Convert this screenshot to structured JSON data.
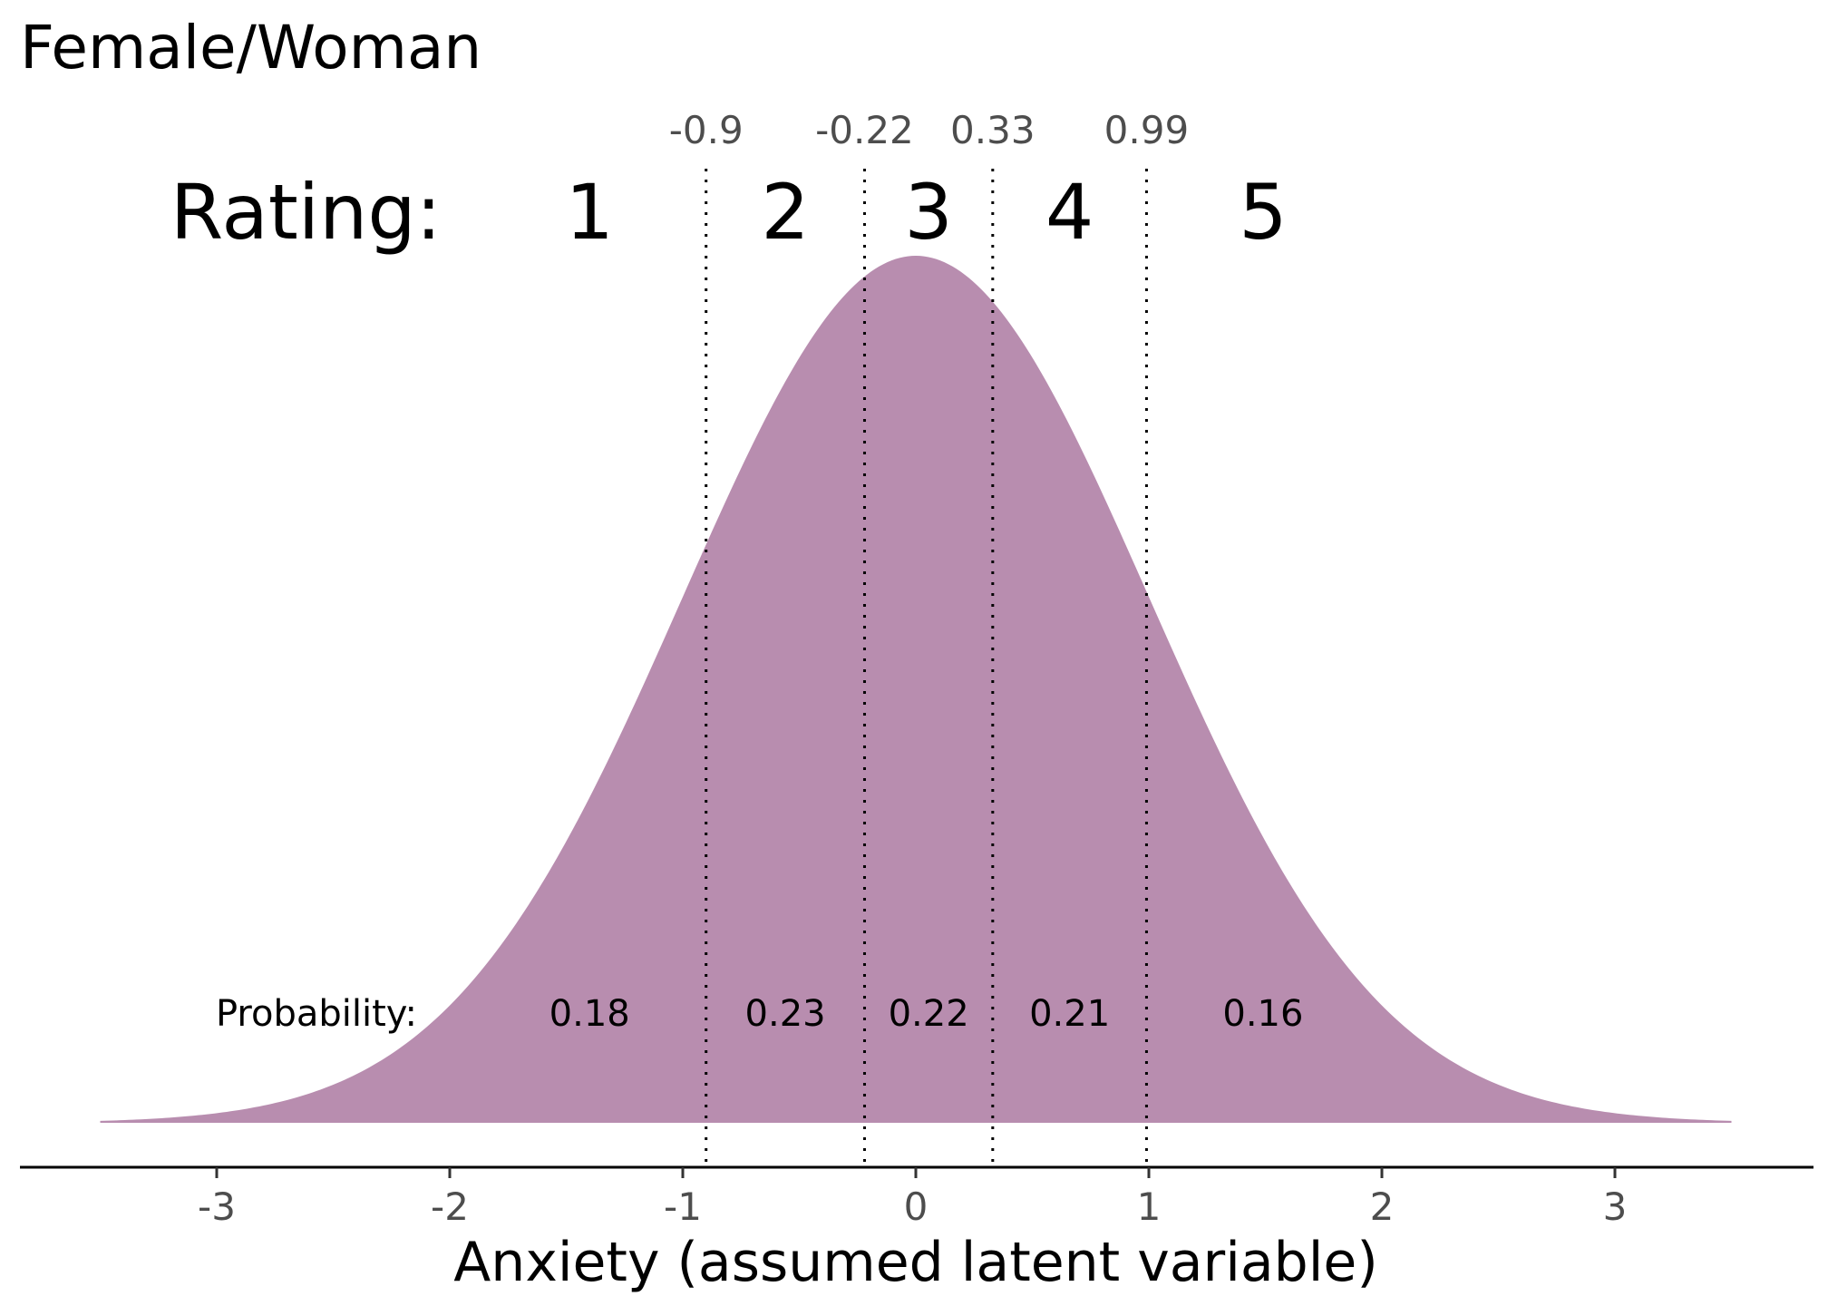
{
  "chart_data": {
    "type": "area",
    "title": "Female/Woman",
    "xlabel": "Anxiety (assumed latent variable)",
    "ylabel": "",
    "xlim": [
      -4,
      3.85
    ],
    "x_ticks": [
      -3,
      -2,
      -1,
      0,
      1,
      2,
      3
    ],
    "x_tick_labels": [
      "-3",
      "-2",
      "-1",
      "0",
      "1",
      "2",
      "3"
    ],
    "distribution": {
      "name": "standard normal",
      "mean": 0,
      "sd": 1,
      "x_range": [
        -3.5,
        3.5
      ]
    },
    "fill_color": "#b88daf",
    "thresholds": [
      -0.9,
      -0.22,
      0.33,
      0.99
    ],
    "threshold_labels": [
      "-0.9",
      "-0.22",
      "0.33",
      "0.99"
    ],
    "rating_label": "Rating:",
    "categories": [
      "1",
      "2",
      "3",
      "4",
      "5"
    ],
    "probability_label": "Probability:",
    "probabilities": [
      0.18,
      0.23,
      0.22,
      0.21,
      0.16
    ],
    "probability_labels": [
      "0.18",
      "0.23",
      "0.22",
      "0.21",
      "0.16"
    ],
    "grid": false,
    "legend": "none"
  }
}
